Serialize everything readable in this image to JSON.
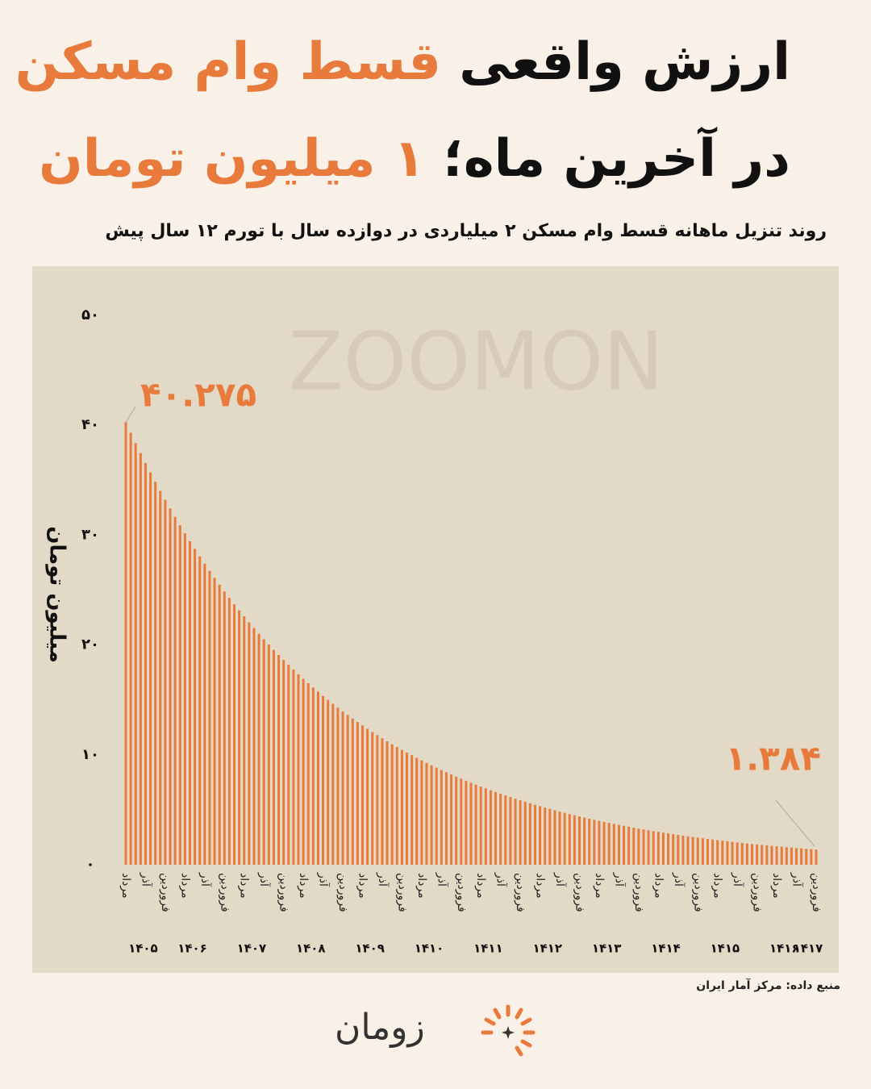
{
  "title": {
    "line1": [
      "ارزش واقعی",
      "قسط وام مسکن"
    ],
    "line2": [
      "در آخرین ماه؛",
      "۱ میلیون تومان"
    ]
  },
  "subtitle": "روند تنزیل ماهانه قسط وام مسکن ۲ میلیاردی در دوازده سال با تورم ۱۲ سال پیش",
  "source": "منبع داده: مرکز آمار ایران",
  "brand": "زومان",
  "chart_data": {
    "type": "bar",
    "color": "#e87a3c",
    "grid": false,
    "y_label": "میلیون تومان",
    "watermark": "ZOOMON",
    "ylim": [
      0,
      50
    ],
    "yticks": [
      {
        "value": 0,
        "label": "۰"
      },
      {
        "value": 10,
        "label": "۱۰"
      },
      {
        "value": 20,
        "label": "۲۰"
      },
      {
        "value": 30,
        "label": "۳۰"
      },
      {
        "value": 40,
        "label": "۴۰"
      },
      {
        "value": 50,
        "label": "۵۰"
      }
    ],
    "x_group_labels": [
      "۱۴۰۵",
      "۱۴۰۶",
      "۱۴۰۷",
      "۱۴۰۸",
      "۱۴۰۹",
      "۱۴۱۰",
      "۱۴۱۱",
      "۱۴۱۲",
      "۱۴۱۳",
      "۱۴۱۴",
      "۱۴۱۵",
      "۱۴۱۶",
      "۱۴۱۷"
    ],
    "categories": [
      "مرداد",
      null,
      null,
      null,
      "آذر",
      null,
      null,
      null,
      "فروردین",
      null,
      null,
      null,
      "مرداد",
      null,
      null,
      null,
      "آذر",
      null,
      null,
      null,
      "فروردین",
      null,
      null,
      null,
      "مرداد",
      null,
      null,
      null,
      "آذر",
      null,
      null,
      null,
      "فروردین",
      null,
      null,
      null,
      "مرداد",
      null,
      null,
      null,
      "آذر",
      null,
      null,
      null,
      "فروردین",
      null,
      null,
      null,
      "مرداد",
      null,
      null,
      null,
      "آذر",
      null,
      null,
      null,
      "فروردین",
      null,
      null,
      null,
      "مرداد",
      null,
      null,
      null,
      "آذر",
      null,
      null,
      null,
      "فروردین",
      null,
      null,
      null,
      "مرداد",
      null,
      null,
      null,
      "آذر",
      null,
      null,
      null,
      "فروردین",
      null,
      null,
      null,
      "مرداد",
      null,
      null,
      null,
      "آذر",
      null,
      null,
      null,
      "فروردین",
      null,
      null,
      null,
      "مرداد",
      null,
      null,
      null,
      "آذر",
      null,
      null,
      null,
      "فروردین",
      null,
      null,
      null,
      "مرداد",
      null,
      null,
      null,
      "آذر",
      null,
      null,
      null,
      "فروردین",
      null,
      null,
      null,
      "مرداد",
      null,
      null,
      null,
      "آذر",
      null,
      null,
      null,
      "فروردین",
      null,
      null,
      null,
      "مرداد",
      null,
      null,
      null,
      "آذر",
      null,
      null,
      null,
      "فروردین"
    ],
    "values": [
      40.275,
      39.32,
      38.38,
      37.47,
      36.58,
      35.71,
      34.86,
      34.03,
      33.22,
      32.43,
      31.66,
      30.9,
      30.17,
      29.45,
      28.75,
      28.07,
      27.4,
      26.75,
      26.11,
      25.49,
      24.88,
      24.29,
      23.71,
      23.15,
      22.6,
      22.06,
      21.54,
      21.02,
      20.52,
      20.04,
      19.56,
      19.09,
      18.64,
      18.2,
      17.76,
      17.34,
      16.93,
      16.52,
      16.13,
      15.75,
      15.37,
      15.01,
      14.65,
      14.3,
      13.96,
      13.63,
      13.3,
      12.99,
      12.68,
      12.38,
      12.08,
      11.8,
      11.51,
      11.24,
      10.97,
      10.71,
      10.46,
      10.21,
      9.97,
      9.73,
      9.5,
      9.27,
      9.05,
      8.84,
      8.63,
      8.42,
      8.22,
      8.02,
      7.83,
      7.65,
      7.47,
      7.29,
      7.11,
      6.95,
      6.78,
      6.62,
      6.46,
      6.31,
      6.16,
      6.01,
      5.87,
      5.73,
      5.59,
      5.46,
      5.33,
      5.2,
      5.08,
      4.96,
      4.84,
      4.72,
      4.61,
      4.5,
      4.4,
      4.29,
      4.19,
      4.09,
      3.99,
      3.9,
      3.8,
      3.71,
      3.63,
      3.54,
      3.46,
      3.37,
      3.29,
      3.22,
      3.14,
      3.06,
      2.99,
      2.92,
      2.85,
      2.78,
      2.72,
      2.65,
      2.59,
      2.53,
      2.47,
      2.41,
      2.35,
      2.3,
      2.24,
      2.19,
      2.14,
      2.08,
      2.03,
      1.99,
      1.94,
      1.89,
      1.85,
      1.8,
      1.76,
      1.72,
      1.68,
      1.64,
      1.6,
      1.56,
      1.52,
      1.49,
      1.45,
      1.42,
      1.384
    ],
    "value_labels": [
      "۴۰.۲۷۵",
      null,
      null,
      null,
      null,
      null,
      null,
      null,
      null,
      null,
      null,
      null,
      null,
      null,
      null,
      null,
      null,
      null,
      null,
      null,
      null,
      null,
      null,
      null,
      null,
      null,
      null,
      null,
      null,
      null,
      null,
      null,
      null,
      null,
      null,
      null,
      null,
      null,
      null,
      null,
      null,
      null,
      null,
      null,
      null,
      null,
      null,
      null,
      null,
      null,
      null,
      null,
      null,
      null,
      null,
      null,
      null,
      null,
      null,
      null,
      null,
      null,
      null,
      null,
      null,
      null,
      null,
      null,
      null,
      null,
      null,
      null,
      null,
      null,
      null,
      null,
      null,
      null,
      null,
      null,
      null,
      null,
      null,
      null,
      null,
      null,
      null,
      null,
      null,
      null,
      null,
      null,
      null,
      null,
      null,
      null,
      null,
      null,
      null,
      null,
      null,
      null,
      null,
      null,
      null,
      null,
      null,
      null,
      null,
      null,
      null,
      null,
      null,
      null,
      null,
      null,
      null,
      null,
      null,
      null,
      null,
      null,
      null,
      null,
      null,
      null,
      null,
      null,
      null,
      null,
      null,
      null,
      null,
      null,
      null,
      null,
      null,
      null,
      null,
      null,
      "۱.۳۸۴"
    ]
  }
}
